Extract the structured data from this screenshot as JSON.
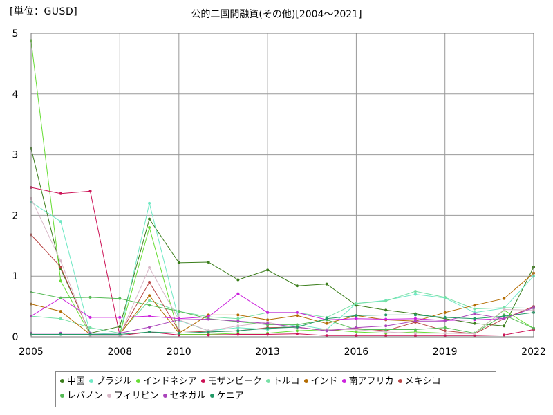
{
  "unit_label": "[単位：GUSD]",
  "chart_data": {
    "type": "line",
    "title": "公的二国間融資(その他)[2004～2021]",
    "xlabel": "",
    "ylabel": "",
    "xlim": [
      2005,
      2022
    ],
    "ylim": [
      0,
      5
    ],
    "x_ticks": [
      2005,
      2008,
      2010,
      2013,
      2016,
      2019,
      2022
    ],
    "y_ticks": [
      0,
      1,
      2,
      3,
      4,
      5
    ],
    "grid": true,
    "legend_position": "bottom",
    "x": [
      2005,
      2006,
      2007,
      2008,
      2009,
      2010,
      2011,
      2012,
      2013,
      2014,
      2015,
      2016,
      2017,
      2018,
      2019,
      2020,
      2021,
      2022
    ],
    "series": [
      {
        "name": "中国",
        "color": "#3a7d1a",
        "values": [
          3.1,
          1.12,
          0.06,
          0.17,
          1.94,
          1.22,
          1.23,
          0.94,
          1.1,
          0.84,
          0.87,
          0.52,
          0.44,
          0.38,
          0.3,
          0.22,
          0.18,
          1.15
        ]
      },
      {
        "name": "ブラジル",
        "color": "#6ee8c4",
        "values": [
          2.22,
          1.9,
          0.06,
          0.04,
          2.2,
          0.27,
          0.1,
          0.15,
          0.12,
          0.2,
          0.12,
          0.55,
          0.6,
          0.7,
          0.64,
          0.4,
          0.47,
          1.0
        ]
      },
      {
        "name": "インドネシア",
        "color": "#66dd33",
        "values": [
          4.87,
          0.92,
          0.04,
          0.04,
          1.8,
          0.04,
          0.04,
          0.06,
          0.06,
          0.1,
          0.12,
          0.08,
          0.06,
          0.08,
          0.06,
          0.06,
          0.44,
          0.14
        ]
      },
      {
        "name": "モザンビーク",
        "color": "#cc1155",
        "values": [
          2.46,
          2.36,
          2.4,
          0.02,
          0.08,
          0.03,
          0.03,
          0.04,
          0.04,
          0.05,
          0.02,
          0.02,
          0.02,
          0.02,
          0.02,
          0.02,
          0.03,
          0.12
        ]
      },
      {
        "name": "トルコ",
        "color": "#77e0a6",
        "values": [
          0.34,
          0.3,
          0.15,
          0.06,
          0.6,
          0.42,
          0.33,
          0.3,
          0.4,
          0.4,
          0.32,
          0.55,
          0.59,
          0.75,
          0.65,
          0.46,
          0.48,
          0.47
        ]
      },
      {
        "name": "インド",
        "color": "#b36b00",
        "values": [
          0.54,
          0.42,
          0.04,
          0.04,
          0.68,
          0.06,
          0.36,
          0.36,
          0.28,
          0.35,
          0.22,
          0.35,
          0.28,
          0.26,
          0.4,
          0.52,
          0.63,
          1.05
        ]
      },
      {
        "name": "南アフリカ",
        "color": "#cc22dd",
        "values": [
          0.34,
          0.64,
          0.32,
          0.32,
          0.34,
          0.3,
          0.33,
          0.71,
          0.4,
          0.4,
          0.28,
          0.3,
          0.29,
          0.3,
          0.27,
          0.28,
          0.3,
          0.48
        ]
      },
      {
        "name": "メキシコ",
        "color": "#b84444",
        "values": [
          1.68,
          1.15,
          0.04,
          0.04,
          0.9,
          0.1,
          0.08,
          0.1,
          0.15,
          0.16,
          0.1,
          0.14,
          0.1,
          0.24,
          0.1,
          0.05,
          0.3,
          0.5
        ]
      },
      {
        "name": "レバノン",
        "color": "#55bb55",
        "values": [
          0.74,
          0.64,
          0.65,
          0.63,
          0.52,
          0.42,
          0.3,
          0.25,
          0.2,
          0.2,
          0.28,
          0.12,
          0.12,
          0.12,
          0.15,
          0.06,
          0.36,
          0.14
        ]
      },
      {
        "name": "フィリピン",
        "color": "#d8b8c8",
        "values": [
          2.28,
          1.25,
          0.02,
          0.02,
          1.14,
          0.28,
          0.1,
          0.18,
          0.24,
          0.14,
          0.12,
          0.12,
          0.08,
          0.06,
          0.06,
          0.05,
          0.45,
          0.44
        ]
      },
      {
        "name": "セネガル",
        "color": "#aa44bb",
        "values": [
          0.06,
          0.06,
          0.06,
          0.06,
          0.16,
          0.28,
          0.29,
          0.26,
          0.22,
          0.16,
          0.1,
          0.15,
          0.18,
          0.26,
          0.26,
          0.38,
          0.3,
          0.48
        ]
      },
      {
        "name": "ケニア",
        "color": "#229966",
        "values": [
          0.04,
          0.04,
          0.04,
          0.04,
          0.08,
          0.06,
          0.08,
          0.1,
          0.14,
          0.16,
          0.3,
          0.35,
          0.36,
          0.36,
          0.32,
          0.3,
          0.34,
          0.4
        ]
      }
    ]
  }
}
